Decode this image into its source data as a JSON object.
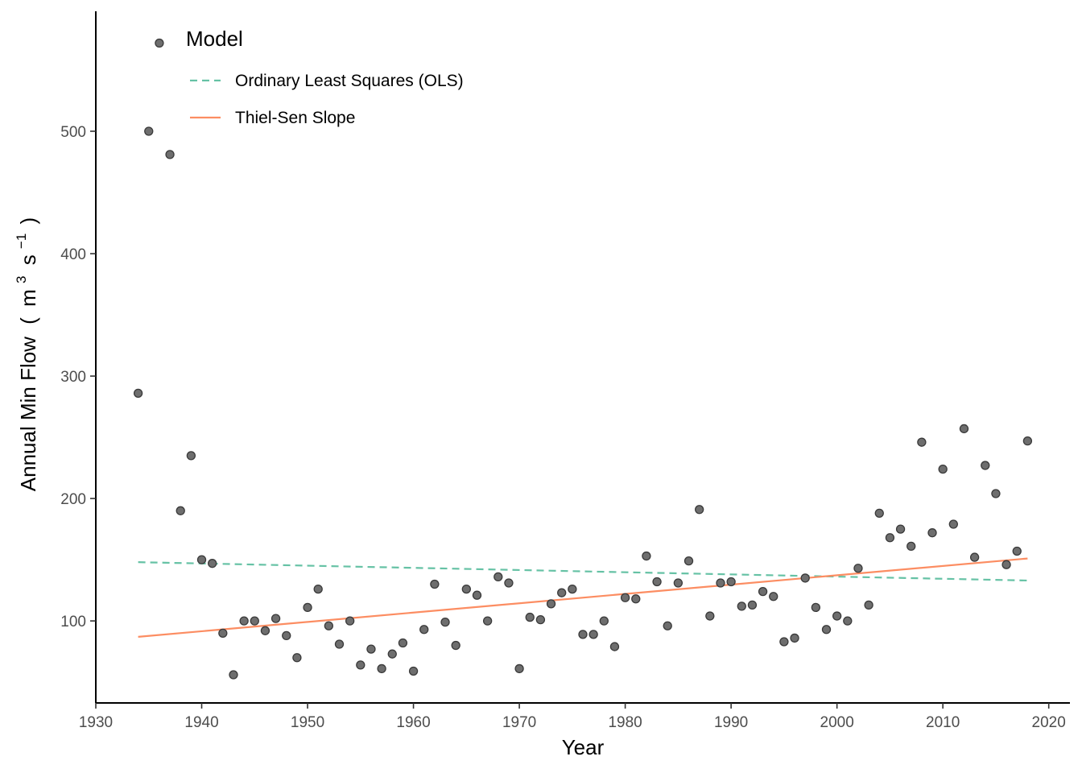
{
  "chart_data": {
    "type": "scatter",
    "title": "",
    "xlabel": "Year",
    "ylabel_text": "Annual Min Flow",
    "ylabel_unit": {
      "base1": "m",
      "sup1": "3",
      "base2": "s",
      "sup2": "−1"
    },
    "xlim": [
      1930,
      2022
    ],
    "ylim": [
      33,
      598
    ],
    "xticks": [
      1930,
      1940,
      1950,
      1960,
      1970,
      1980,
      1990,
      2000,
      2010,
      2020
    ],
    "yticks": [
      100,
      200,
      300,
      400,
      500
    ],
    "grid": false,
    "legend": {
      "position": "top-left",
      "title": "Model",
      "entries": [
        {
          "label": "Ordinary Least Squares (OLS)",
          "style": "dashed"
        },
        {
          "label": "Thiel-Sen Slope",
          "style": "solid"
        }
      ]
    },
    "colors": {
      "points_fill": "#6e6e6e",
      "points_stroke": "#3a3a3a",
      "ols": "#66c2a5",
      "thiel_sen": "#fc8d62",
      "axis": "#000000"
    },
    "series": [
      {
        "name": "Model",
        "kind": "points",
        "x": [
          1934,
          1935,
          1937,
          1938,
          1939,
          1940,
          1941,
          1942,
          1943,
          1944,
          1945,
          1946,
          1947,
          1948,
          1949,
          1950,
          1951,
          1952,
          1953,
          1954,
          1955,
          1956,
          1957,
          1958,
          1959,
          1960,
          1961,
          1962,
          1963,
          1964,
          1965,
          1966,
          1967,
          1968,
          1969,
          1970,
          1971,
          1972,
          1973,
          1974,
          1975,
          1976,
          1977,
          1978,
          1979,
          1980,
          1981,
          1982,
          1983,
          1984,
          1985,
          1986,
          1987,
          1988,
          1989,
          1990,
          1991,
          1992,
          1993,
          1994,
          1995,
          1996,
          1997,
          1998,
          1999,
          2000,
          2001,
          2002,
          2003,
          2004,
          2005,
          2006,
          2007,
          2008,
          2009,
          2010,
          2011,
          2012,
          2013,
          2014,
          2015,
          2016,
          2017,
          2018
        ],
        "y": [
          286,
          500,
          481,
          190,
          235,
          150,
          147,
          90,
          56,
          100,
          100,
          92,
          102,
          88,
          70,
          111,
          126,
          96,
          81,
          100,
          64,
          77,
          61,
          73,
          82,
          59,
          93,
          130,
          99,
          80,
          126,
          121,
          100,
          136,
          131,
          61,
          103,
          101,
          114,
          123,
          126,
          89,
          89,
          100,
          79,
          119,
          118,
          153,
          132,
          96,
          131,
          149,
          191,
          104,
          131,
          132,
          112,
          113,
          124,
          120,
          83,
          86,
          135,
          111,
          93,
          104,
          100,
          143,
          113,
          188,
          168,
          175,
          161,
          246,
          172,
          224,
          179,
          257,
          152,
          227,
          204,
          146,
          157,
          247
        ]
      },
      {
        "name": "Ordinary Least Squares (OLS)",
        "kind": "line",
        "style": "dashed",
        "x": [
          1934,
          2018
        ],
        "y": [
          148,
          133
        ]
      },
      {
        "name": "Thiel-Sen Slope",
        "kind": "line",
        "style": "solid",
        "x": [
          1934,
          2018
        ],
        "y": [
          87,
          151
        ]
      },
      {
        "name": "Model",
        "kind": "legend-point",
        "x": [
          1936
        ],
        "y": [
          572
        ]
      }
    ]
  }
}
